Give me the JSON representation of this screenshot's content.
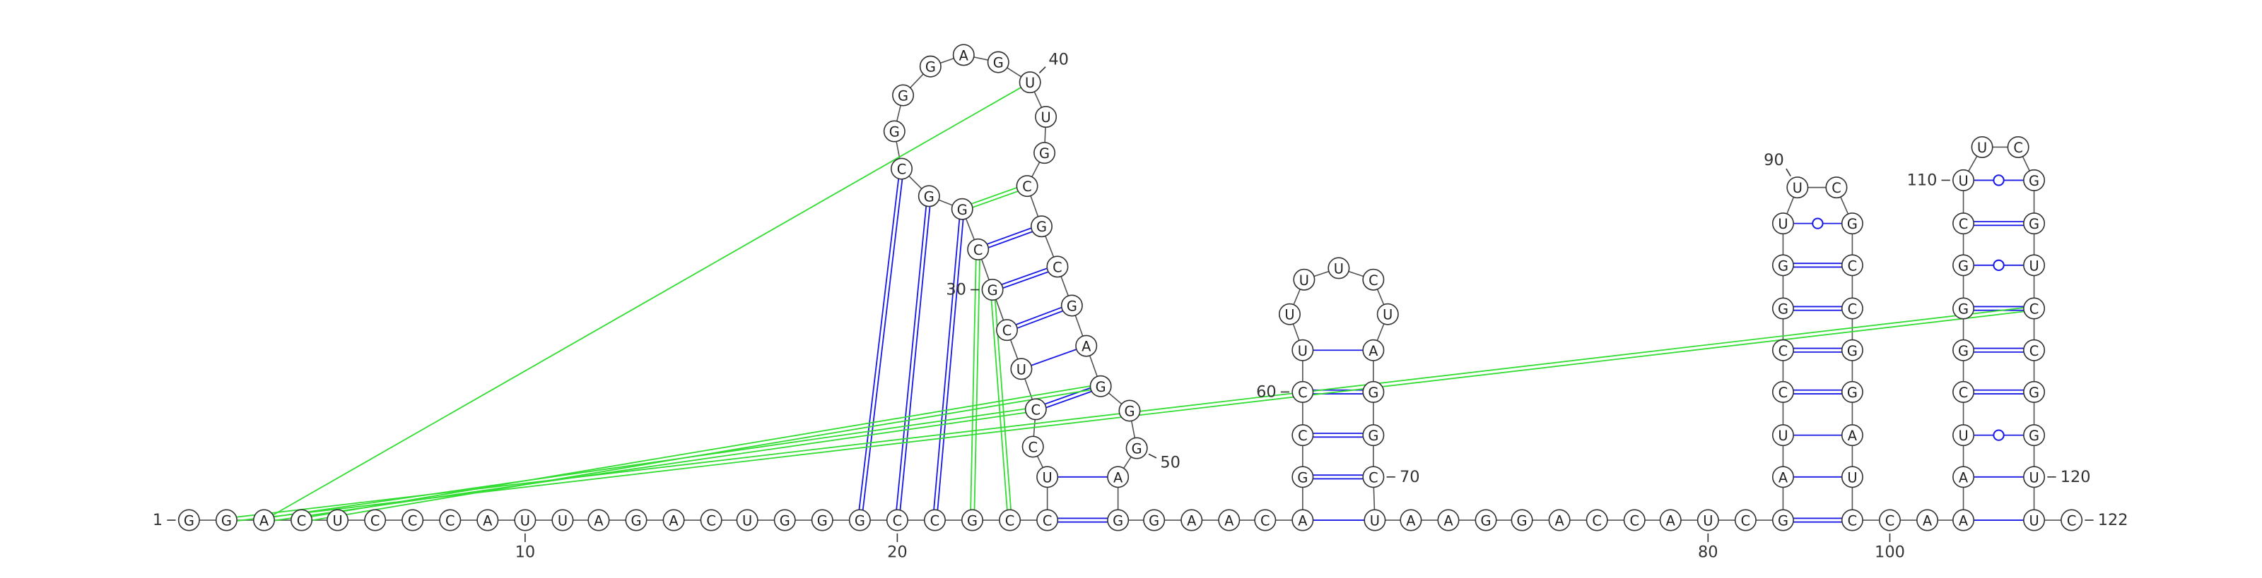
{
  "sequence": [
    "G",
    "G",
    "A",
    "C",
    "U",
    "C",
    "C",
    "C",
    "A",
    "U",
    "U",
    "A",
    "G",
    "A",
    "C",
    "U",
    "G",
    "G",
    "G",
    "C",
    "C",
    "G",
    "C",
    "C",
    "U",
    "C",
    "C",
    "U",
    "C",
    "G",
    "C",
    "G",
    "G",
    "C",
    "G",
    "G",
    "G",
    "A",
    "G",
    "U",
    "U",
    "G",
    "C",
    "G",
    "C",
    "G",
    "A",
    "G",
    "G",
    "G",
    "A",
    "G",
    "G",
    "A",
    "A",
    "C",
    "A",
    "G",
    "C",
    "C",
    "U",
    "U",
    "U",
    "U",
    "C",
    "U",
    "A",
    "G",
    "G",
    "C",
    "U",
    "A",
    "A",
    "G",
    "G",
    "A",
    "C",
    "C",
    "A",
    "U",
    "C",
    "G",
    "A",
    "U",
    "C",
    "C",
    "G",
    "G",
    "U",
    "U",
    "C",
    "G",
    "C",
    "C",
    "G",
    "G",
    "A",
    "U",
    "C",
    "C",
    "A",
    "A",
    "A",
    "U",
    "C",
    "G",
    "G",
    "G",
    "C",
    "U",
    "U",
    "C",
    "G",
    "G",
    "U",
    "C",
    "C",
    "G",
    "G",
    "U",
    "U",
    "C"
  ],
  "position_labels": [
    1,
    10,
    20,
    30,
    40,
    50,
    60,
    70,
    80,
    90,
    100,
    110,
    120,
    122
  ]
}
